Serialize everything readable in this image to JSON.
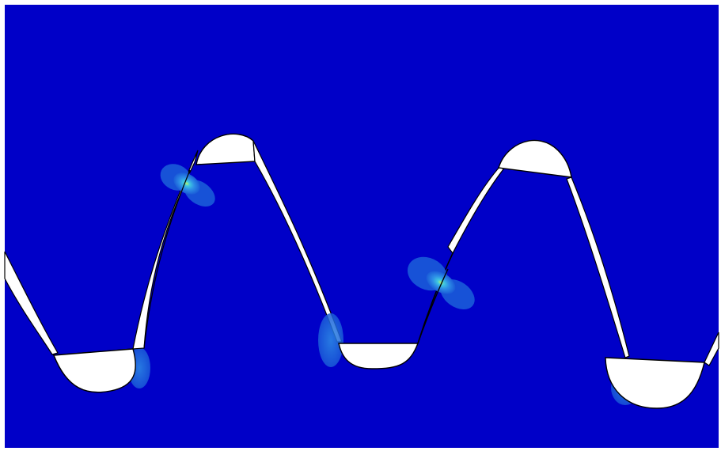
{
  "scene": {
    "description_visible_text": "",
    "colors": {
      "background_stress_low": "#0000C8",
      "gap_white": "#FFFFFF",
      "contour_level_1": "#1A5BD8",
      "contour_level_2": "#2E8FE6",
      "contour_level_3": "#3FC9E0",
      "contour_peak": "#B7F26A",
      "edge_line": "#000000"
    }
  }
}
